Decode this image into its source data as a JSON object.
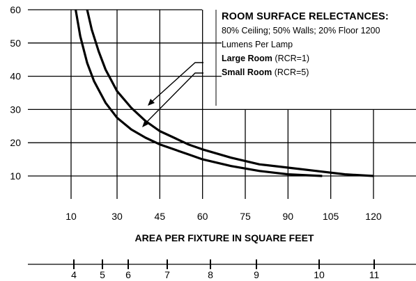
{
  "chart_data": {
    "type": "line",
    "title": "",
    "xlabel": "AREA PER FIXTURE IN SQUARE FEET",
    "ylabel": "",
    "x_ticks": [
      10,
      30,
      45,
      60,
      75,
      90,
      105,
      120
    ],
    "y_ticks": [
      10,
      20,
      30,
      40,
      50,
      60
    ],
    "xlim": [
      0,
      135
    ],
    "ylim": [
      0,
      60
    ],
    "grid": true,
    "secondary_axis": {
      "position": "bottom",
      "ticks": [
        4,
        5,
        6,
        7,
        8,
        9,
        10,
        11
      ]
    },
    "series": [
      {
        "name": "Large Room (RCR=1)",
        "x": [
          17,
          19,
          22,
          25,
          30,
          35,
          40,
          45,
          50,
          55,
          60,
          70,
          80,
          90,
          100,
          110,
          120
        ],
        "y": [
          60,
          54,
          47.5,
          42,
          35.5,
          30.5,
          26.5,
          23.5,
          21.5,
          19.5,
          18,
          15.5,
          13.5,
          12.5,
          11.5,
          10.5,
          10
        ]
      },
      {
        "name": "Small Room (RCR=5)",
        "x": [
          12,
          14,
          17,
          20,
          25,
          30,
          35,
          40,
          45,
          50,
          55,
          60,
          70,
          80,
          90,
          102
        ],
        "y": [
          60,
          52,
          44,
          38.5,
          32,
          27.5,
          24,
          21.5,
          19.5,
          18,
          16.5,
          15,
          13,
          11.5,
          10.5,
          10
        ]
      }
    ],
    "legend": {
      "title": "ROOM SURFACE RELECTANCES:",
      "line1": "80% Ceiling; 50% Walls; 20% Floor 1200",
      "line2": "Lumens Per Lamp",
      "large_bold": "Large Room",
      "large_rest": " (RCR=1)",
      "small_bold": "Small Room",
      "small_rest": " (RCR=5)",
      "placement": "top-right"
    }
  }
}
